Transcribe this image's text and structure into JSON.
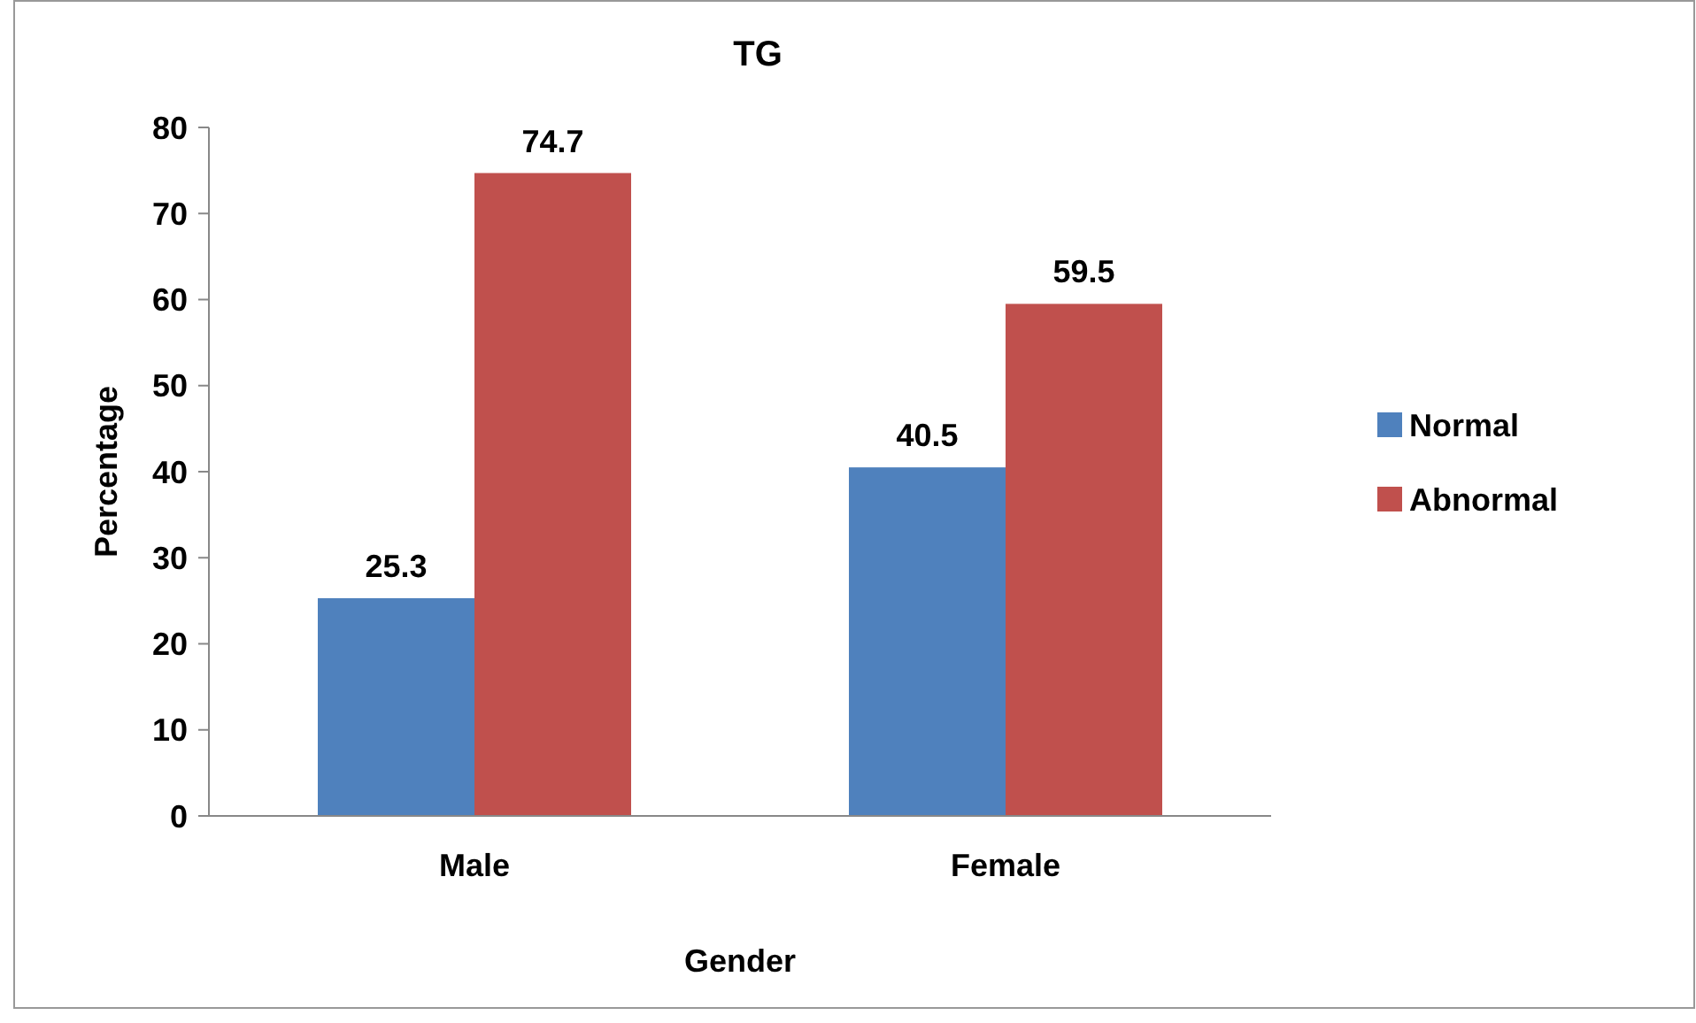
{
  "chart_data": {
    "type": "bar",
    "title": "TG",
    "xlabel": "Gender",
    "ylabel": "Percentage",
    "categories": [
      "Male",
      "Female"
    ],
    "series": [
      {
        "name": "Normal",
        "color": "#4f81bd",
        "values": [
          25.3,
          40.5
        ]
      },
      {
        "name": "Abnormal",
        "color": "#c0504d",
        "values": [
          74.7,
          59.5
        ]
      }
    ],
    "ylim": [
      0,
      80
    ],
    "yticks": [
      0,
      10,
      20,
      30,
      40,
      50,
      60,
      70,
      80
    ],
    "grid": false,
    "legend": "right",
    "data_labels": true
  }
}
